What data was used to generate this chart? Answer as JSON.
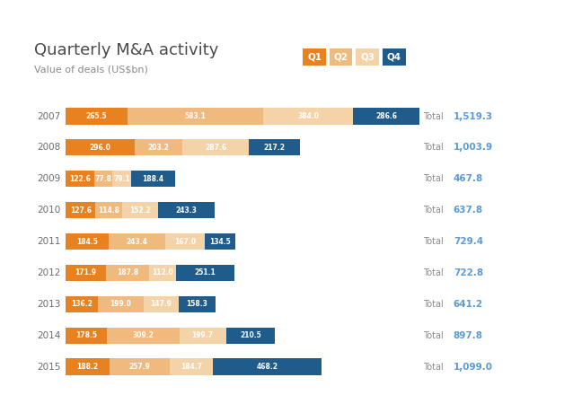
{
  "title": "Quarterly M&A activity",
  "subtitle": "Value of deals (US$bn)",
  "years": [
    2007,
    2008,
    2009,
    2010,
    2011,
    2012,
    2013,
    2014,
    2015
  ],
  "q1": [
    265.5,
    296.0,
    122.6,
    127.6,
    184.5,
    171.9,
    136.2,
    178.5,
    188.2
  ],
  "q2": [
    583.1,
    203.2,
    77.8,
    114.8,
    243.4,
    187.8,
    199.0,
    309.2,
    257.9
  ],
  "q3": [
    384.0,
    287.6,
    79.1,
    152.2,
    167.0,
    112.0,
    147.9,
    199.7,
    184.7
  ],
  "q4": [
    286.6,
    217.2,
    188.4,
    243.3,
    134.5,
    251.1,
    158.3,
    210.5,
    468.2
  ],
  "totals": [
    "1,519.3",
    "1,003.9",
    "467.8",
    "637.8",
    "729.4",
    "722.8",
    "641.2",
    "897.8",
    "1,099.0"
  ],
  "color_q1": "#E8811F",
  "color_q2": "#F0B97D",
  "color_q3": "#F5D3A8",
  "color_q4": "#1F5C8B",
  "bg_color": "#FFFFFF",
  "text_white": "#FFFFFF",
  "text_gray": "#8A8A8A",
  "text_dark": "#4A4A4A",
  "text_total_color": "#5B9BD5",
  "bar_max": 1519.3,
  "bar_height": 0.52
}
